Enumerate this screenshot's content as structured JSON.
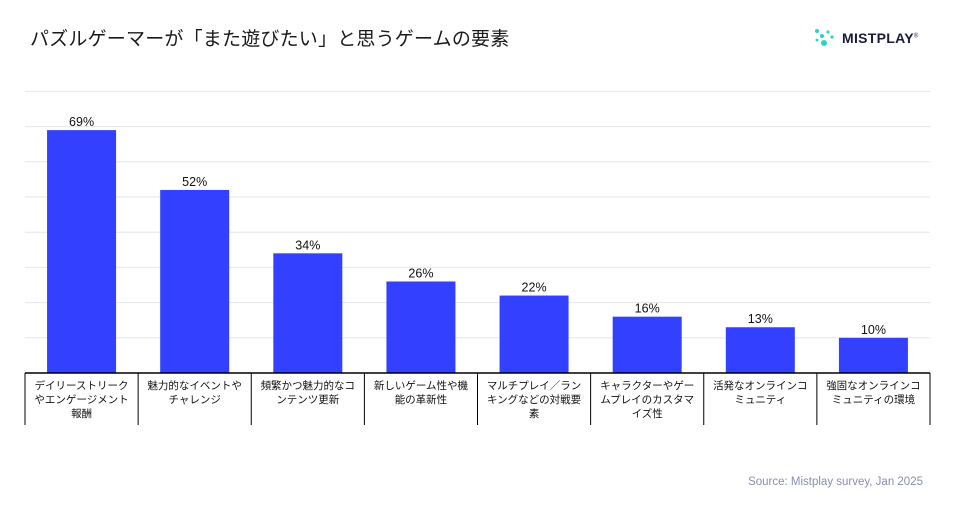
{
  "brand": {
    "name": "MISTPLAY",
    "mark": "®",
    "colors": {
      "dots": "#2ad3c4",
      "text": "#1c1c3a"
    }
  },
  "footer": {
    "source": "Source: Mistplay survey, Jan 2025"
  },
  "colors": {
    "bar": "#3340ff",
    "grid": "#e6e6e6",
    "axis": "#000000",
    "text": "#111111"
  },
  "chart_data": {
    "type": "bar",
    "title": "パズルゲーマーが「また遊びたい」と思うゲームの要素",
    "xlabel": "",
    "ylabel": "",
    "ylim": [
      0,
      80
    ],
    "grid": true,
    "value_suffix": "%",
    "categories": [
      [
        "デイリーストリーク",
        "やエンゲージメント",
        "報酬"
      ],
      [
        "魅力的なイベントや",
        "チャレンジ"
      ],
      [
        "頻繁かつ魅力的なコ",
        "ンテンツ更新"
      ],
      [
        "新しいゲーム性や機",
        "能の革新性"
      ],
      [
        "マルチプレイ／ラン",
        "キングなどの対戦要",
        "素"
      ],
      [
        "キャラクターやゲー",
        "ムプレイのカスタマ",
        "イズ性"
      ],
      [
        "活発なオンラインコ",
        "ミュニティ"
      ],
      [
        "強固なオンラインコ",
        "ミュニティの環境"
      ]
    ],
    "values": [
      69,
      52,
      34,
      26,
      22,
      16,
      13,
      10
    ]
  }
}
